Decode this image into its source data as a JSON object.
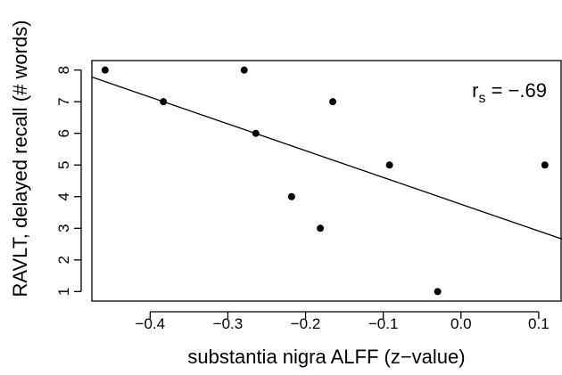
{
  "chart_data": {
    "type": "scatter",
    "title": "",
    "xlabel": "substantia nigra ALFF (z−value)",
    "ylabel": "RAVLT, delayed recall (# words)",
    "xlim": [
      -0.475,
      0.13
    ],
    "ylim": [
      0.7,
      8.3
    ],
    "x_ticks": [
      -0.4,
      -0.3,
      -0.2,
      -0.1,
      0.0,
      0.1
    ],
    "x_tick_labels": [
      "−0.4",
      "−0.3",
      "−0.2",
      "−0.1",
      "0.0",
      "0.1"
    ],
    "y_ticks": [
      1,
      2,
      3,
      4,
      5,
      6,
      7,
      8
    ],
    "y_tick_labels": [
      "1",
      "2",
      "3",
      "4",
      "5",
      "6",
      "7",
      "8"
    ],
    "points": [
      {
        "x": -0.458,
        "y": 8
      },
      {
        "x": -0.383,
        "y": 7
      },
      {
        "x": -0.279,
        "y": 8
      },
      {
        "x": -0.264,
        "y": 6
      },
      {
        "x": -0.218,
        "y": 4
      },
      {
        "x": -0.181,
        "y": 3
      },
      {
        "x": -0.165,
        "y": 7
      },
      {
        "x": -0.092,
        "y": 5
      },
      {
        "x": -0.03,
        "y": 1
      },
      {
        "x": 0.108,
        "y": 5
      }
    ],
    "fit_line": {
      "x": [
        -0.475,
        0.13
      ],
      "y": [
        7.78,
        2.66
      ]
    },
    "annotation": {
      "main": "r",
      "sub": "s",
      "rest": " = −.69"
    },
    "grid": false,
    "legend": "none"
  }
}
